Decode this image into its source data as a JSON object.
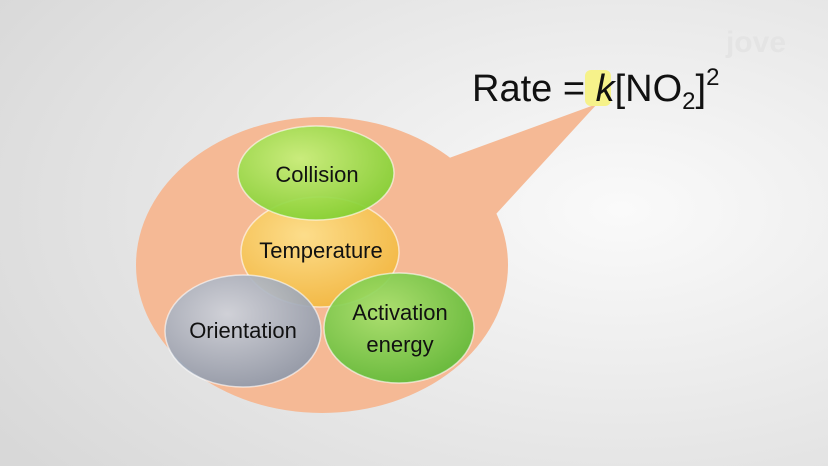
{
  "logo": "jove",
  "equation": {
    "prefix": "Rate = ",
    "constant": "k",
    "open": "[NO",
    "subscript": "2",
    "close": "]",
    "exponent": "2"
  },
  "nodes": [
    {
      "label": "Collision"
    },
    {
      "label": "Temperature"
    },
    {
      "label": "Orientation"
    },
    {
      "label_lines": [
        "Activation",
        "energy"
      ]
    }
  ]
}
